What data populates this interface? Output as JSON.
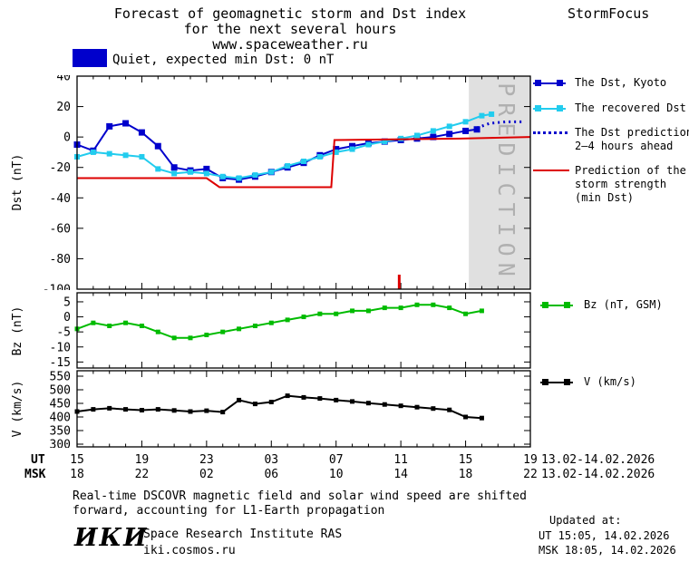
{
  "header": {
    "title_line1": "Forecast of geomagnetic storm and Dst index",
    "title_line2": "for the next several hours",
    "title_line3": "www.spaceweather.ru",
    "brand": "StormFocus"
  },
  "status_banner": {
    "text": "Quiet, expected min Dst: 0 nT"
  },
  "colors": {
    "dst_kyoto": "#0000cc",
    "recovered": "#22ccee",
    "prediction_line": "#0000cc",
    "storm_strength": "#dd0000",
    "bz": "#00bb00",
    "v": "#000000",
    "quiet_box": "#0000cc",
    "band": "#e0e0e0",
    "band_text": "#b0b0b0"
  },
  "legend": {
    "dst_kyoto": "The Dst, Kyoto",
    "recovered": "The recovered Dst",
    "prediction_line1": "The Dst prediction",
    "prediction_line2": "2–4 hours ahead",
    "storm_line1": "Prediction of the",
    "storm_line2": "storm strength",
    "storm_line3": "(min Dst)",
    "bz": "Bz (nT, GSM)",
    "v": "V (km/s)"
  },
  "xaxis": {
    "ut_label": "UT",
    "msk_label": "MSK",
    "ut_ticks": [
      "15",
      "19",
      "23",
      "03",
      "07",
      "11",
      "15",
      "19"
    ],
    "msk_ticks": [
      "18",
      "22",
      "02",
      "06",
      "10",
      "14",
      "18",
      "22"
    ],
    "ut_daterange": "13.02-14.02.2026",
    "msk_daterange": "13.02-14.02.2026"
  },
  "footnote": {
    "line1": "Real-time DSCOVR magnetic field and solar wind speed are shifted",
    "line2": "forward, accounting for L1-Earth propagation"
  },
  "footer": {
    "logo": "ИКИ",
    "institute": "Space Research Institute RAS",
    "site": "iki.cosmos.ru",
    "updated_label": "Updated at:",
    "updated_ut": "UT  15:05, 14.02.2026",
    "updated_msk": "MSK 18:05, 14.02.2026"
  },
  "chart_data": [
    {
      "id": "dst",
      "type": "line",
      "ylabel": "Dst (nT)",
      "ylim": [
        -100,
        40
      ],
      "yticks": [
        40,
        20,
        0,
        -20,
        -40,
        -60,
        -80,
        -100
      ],
      "xlim": [
        0,
        28
      ],
      "xticks_t": [
        0,
        4,
        8,
        12,
        16,
        20,
        24,
        28
      ],
      "x_unit": "hours from 15:00 UT 13.02.2026",
      "prediction_band": [
        24.2,
        28
      ],
      "prediction_band_label": "PREDICTION",
      "event_marker": {
        "t": 19.9,
        "color": "#dd0000"
      },
      "series": [
        {
          "name": "The Dst, Kyoto",
          "color": "#0000cc",
          "marker": "square",
          "ms": 7,
          "x": [
            0,
            1,
            2,
            3,
            4,
            5,
            6,
            7,
            8,
            9,
            10,
            11,
            12,
            13,
            14,
            15,
            16,
            17,
            18,
            19,
            20,
            21,
            22,
            23,
            24,
            24.7
          ],
          "y": [
            -5,
            -9,
            7,
            9,
            3,
            -6,
            -20,
            -22,
            -21,
            -27,
            -28,
            -26,
            -23,
            -20,
            -17,
            -12,
            -8,
            -6,
            -4,
            -3,
            -2,
            -1,
            0,
            2,
            4,
            5
          ]
        },
        {
          "name": "The recovered Dst",
          "color": "#22ccee",
          "marker": "square",
          "ms": 6,
          "x": [
            0,
            1,
            2,
            3,
            4,
            5,
            6,
            7,
            8,
            9,
            10,
            11,
            12,
            13,
            14,
            15,
            16,
            17,
            18,
            19,
            20,
            21,
            22,
            23,
            24,
            25,
            25.6
          ],
          "y": [
            -13,
            -10,
            -11,
            -12,
            -13,
            -21,
            -24,
            -23,
            -24,
            -26,
            -27,
            -25,
            -23,
            -19,
            -16,
            -13,
            -10,
            -8,
            -5,
            -3,
            -1,
            1,
            4,
            7,
            10,
            14,
            15
          ]
        },
        {
          "name": "The Dst prediction 2-4 hours ahead",
          "color": "#0000cc",
          "style": "dotted",
          "x": [
            24.7,
            25.5,
            26.5,
            27.6
          ],
          "y": [
            6,
            9,
            10,
            10
          ]
        },
        {
          "name": "Prediction of the storm strength (min Dst)",
          "color": "#dd0000",
          "x": [
            0,
            8,
            8.8,
            15.7,
            15.9,
            24,
            28
          ],
          "y": [
            -27,
            -27,
            -33,
            -33,
            -2,
            -1,
            0
          ]
        }
      ]
    },
    {
      "id": "bz",
      "type": "line",
      "ylabel": "Bz (nT)",
      "ylim": [
        -17,
        8
      ],
      "yticks": [
        5,
        0,
        -5,
        -10,
        -15
      ],
      "xlim": [
        0,
        28
      ],
      "xticks_t": [
        0,
        4,
        8,
        12,
        16,
        20,
        24,
        28
      ],
      "series": [
        {
          "name": "Bz (nT, GSM)",
          "color": "#00bb00",
          "marker": "square",
          "ms": 5,
          "x": [
            0,
            1,
            2,
            3,
            4,
            5,
            6,
            7,
            8,
            9,
            10,
            11,
            12,
            13,
            14,
            15,
            16,
            17,
            18,
            19,
            20,
            21,
            22,
            23,
            24,
            25
          ],
          "y": [
            -4,
            -2,
            -3,
            -2,
            -3,
            -5,
            -7,
            -7,
            -6,
            -5,
            -4,
            -3,
            -2,
            -1,
            0,
            1,
            1,
            2,
            2,
            3,
            3,
            4,
            4,
            3,
            1,
            2
          ]
        }
      ]
    },
    {
      "id": "v",
      "type": "line",
      "ylabel": "V (km/s)",
      "ylim": [
        290,
        570
      ],
      "yticks": [
        550,
        500,
        450,
        400,
        350,
        300
      ],
      "xlim": [
        0,
        28
      ],
      "xticks_t": [
        0,
        4,
        8,
        12,
        16,
        20,
        24,
        28
      ],
      "series": [
        {
          "name": "V (km/s)",
          "color": "#000000",
          "marker": "square",
          "ms": 5,
          "x": [
            0,
            1,
            2,
            3,
            4,
            5,
            6,
            7,
            8,
            9,
            10,
            11,
            12,
            13,
            14,
            15,
            16,
            17,
            18,
            19,
            20,
            21,
            22,
            23,
            24,
            25
          ],
          "y": [
            420,
            428,
            432,
            428,
            425,
            428,
            424,
            420,
            423,
            418,
            462,
            448,
            455,
            478,
            472,
            468,
            462,
            457,
            451,
            446,
            441,
            436,
            431,
            426,
            400,
            396
          ]
        }
      ]
    }
  ]
}
